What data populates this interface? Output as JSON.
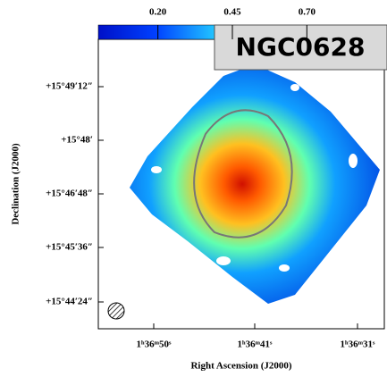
{
  "title": "NGC0628",
  "colorbar": {
    "clim": [
      0,
      0.96
    ],
    "ticks": [
      {
        "value": 0.2,
        "label": "0.20"
      },
      {
        "value": 0.45,
        "label": "0.45"
      },
      {
        "value": 0.7,
        "label": "0.70"
      }
    ]
  },
  "x_axis": {
    "label": "Right Ascension (J2000)",
    "ticks": [
      "1ʰ36ᵐ50ˢ",
      "1ʰ36ᵐ41ˢ",
      "1ʰ36ᵐ31ˢ"
    ]
  },
  "y_axis": {
    "label": "Declination (J2000)",
    "ticks": [
      "+15°49′12″",
      "+15°48′",
      "+15°46′48″",
      "+15°45′36″",
      "+15°44′24″"
    ]
  }
}
